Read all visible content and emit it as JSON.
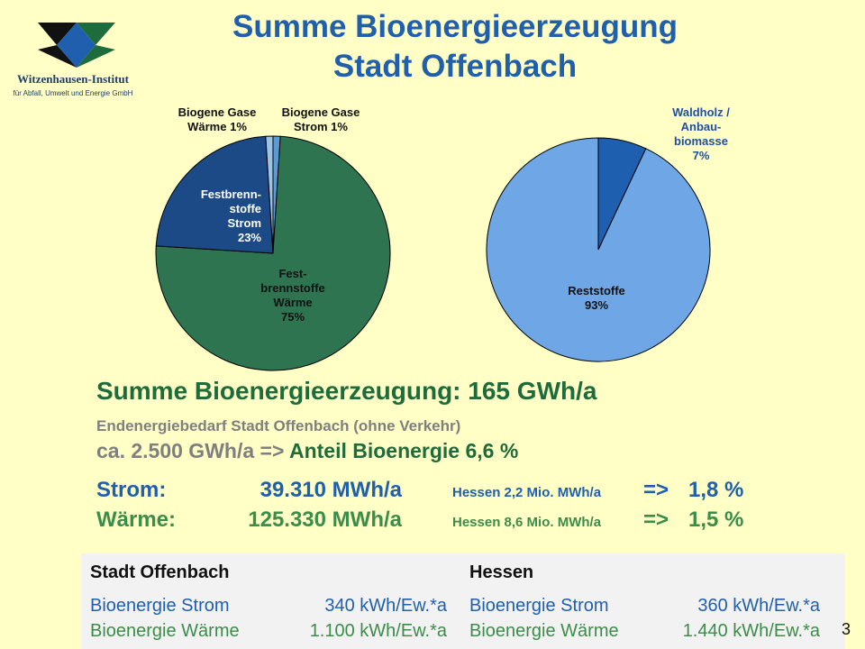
{
  "header": {
    "title_line1": "Summe Bioenergieerzeugung",
    "title_line2": "Stadt Offenbach",
    "logo_name": "Witzenhausen-Institut",
    "logo_sub": "für Abfall, Umwelt und Energie GmbH",
    "logo_icon": "witzenhausen-logo-icon"
  },
  "colors": {
    "background": "#FFFFC6",
    "title": "#1F5FAE",
    "green_dark": "#2E7451",
    "blue_dark": "#1B4A86",
    "light_blue": "#6EA6E6",
    "medium_blue": "#1E5FB0"
  },
  "chart_data": [
    {
      "type": "pie",
      "slices": [
        {
          "label_lines": [
            "Biogene Gase",
            "Wärme  1%"
          ],
          "value": 1,
          "color": "#9DC3E6"
        },
        {
          "label_lines": [
            "Biogene Gase",
            "Strom  1%"
          ],
          "value": 1,
          "color": "#5B9BD5"
        },
        {
          "label_lines": [
            "Festbrenn-",
            "stoffe",
            "Strom",
            "23%"
          ],
          "value": 23,
          "color": "#1B4A86"
        },
        {
          "label_lines": [
            "Fest-",
            "brennstoffe",
            "Wärme",
            "75%"
          ],
          "value": 75,
          "color": "#2E7451"
        }
      ]
    },
    {
      "type": "pie",
      "slices": [
        {
          "label_lines": [
            "Waldholz /",
            "Anbau-",
            "biomasse",
            "7%"
          ],
          "value": 7,
          "color": "#1E5FB0"
        },
        {
          "label_lines": [
            "Reststoffe",
            "93%"
          ],
          "value": 93,
          "color": "#6EA6E6"
        }
      ]
    }
  ],
  "summary": {
    "summe": "Summe Bioenergieerzeugung: 165 GWh/a",
    "endenergie": "Endenergiebedarf Stadt Offenbach  (ohne Verkehr)",
    "ca": "ca. 2.500 GWh/a =>",
    "anteil": "Anteil Bioenergie 6,6 %"
  },
  "rows": {
    "strom": {
      "label": "Strom:",
      "value": "39.310 MWh/a",
      "hessen": "Hessen 2,2 Mio. MWh/a",
      "arrow": "=>",
      "pct": "1,8 %"
    },
    "waerme": {
      "label": "Wärme:",
      "value": "125.330 MWh/a",
      "hessen": "Hessen 8,6 Mio. MWh/a",
      "arrow": "=>",
      "pct": "1,5 %"
    }
  },
  "table": {
    "left": {
      "header": "Stadt Offenbach",
      "strom_label": "Bioenergie Strom",
      "strom_value": "340 kWh/Ew.*a",
      "waerme_label": "Bioenergie Wärme",
      "waerme_value": "1.100 kWh/Ew.*a"
    },
    "right": {
      "header": "Hessen",
      "strom_label": "Bioenergie Strom",
      "strom_value": "360 kWh/Ew.*a",
      "waerme_label": "Bioenergie Wärme",
      "waerme_value": "1.440 kWh/Ew.*a"
    }
  },
  "page_number": "3"
}
